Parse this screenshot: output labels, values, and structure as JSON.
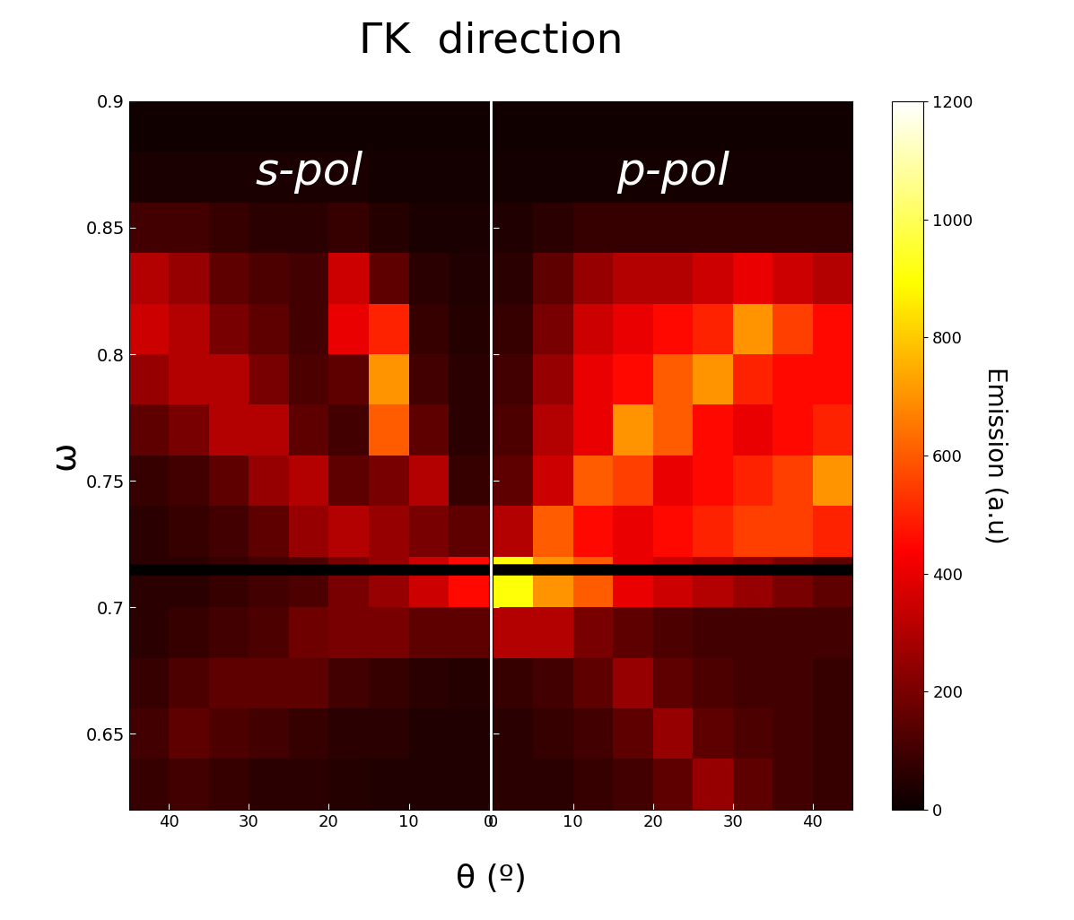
{
  "chart_data": {
    "type": "heatmap",
    "title": "ΓK  direction",
    "x_label": "θ (º)",
    "y_label": "ω",
    "ylim": [
      0.62,
      0.9
    ],
    "yticks": [
      0.65,
      0.7,
      0.75,
      0.8,
      0.85,
      0.9
    ],
    "hline": 0.715,
    "x_edges": [
      0,
      5,
      10,
      15,
      20,
      25,
      30,
      35,
      40,
      45
    ],
    "y_edges": [
      0.62,
      0.64,
      0.66,
      0.68,
      0.7,
      0.72,
      0.74,
      0.76,
      0.78,
      0.8,
      0.82,
      0.84,
      0.86,
      0.88,
      0.9
    ],
    "colorbar": {
      "label": "Emission (a.u)",
      "range": [
        0,
        1200
      ],
      "ticks": [
        0,
        200,
        400,
        600,
        800,
        1000,
        1200
      ]
    },
    "panels": [
      {
        "name": "s-pol",
        "xlim": [
          45,
          0
        ],
        "xticks": [
          40,
          30,
          20,
          10,
          0
        ],
        "cells": [
          [
            40,
            40,
            40,
            50,
            60,
            60,
            80,
            100,
            80
          ],
          [
            40,
            40,
            60,
            60,
            80,
            100,
            120,
            150,
            100
          ],
          [
            50,
            60,
            80,
            100,
            150,
            150,
            150,
            120,
            80
          ],
          [
            150,
            150,
            200,
            200,
            180,
            120,
            100,
            80,
            60
          ],
          [
            450,
            350,
            250,
            200,
            120,
            100,
            80,
            60,
            60
          ],
          [
            150,
            200,
            250,
            300,
            250,
            150,
            100,
            80,
            60
          ],
          [
            80,
            300,
            200,
            150,
            300,
            250,
            150,
            100,
            80
          ],
          [
            60,
            150,
            600,
            100,
            150,
            300,
            300,
            200,
            150
          ],
          [
            60,
            100,
            700,
            150,
            120,
            200,
            300,
            300,
            250
          ],
          [
            50,
            80,
            500,
            400,
            100,
            150,
            200,
            300,
            350
          ],
          [
            40,
            60,
            150,
            350,
            100,
            120,
            150,
            250,
            300
          ],
          [
            30,
            30,
            50,
            80,
            60,
            60,
            80,
            100,
            100
          ],
          [
            20,
            20,
            20,
            30,
            30,
            30,
            30,
            30,
            30
          ],
          [
            10,
            10,
            10,
            10,
            10,
            10,
            10,
            10,
            10
          ]
        ]
      },
      {
        "name": "p-pol",
        "xlim": [
          0,
          45
        ],
        "xticks": [
          0,
          10,
          20,
          30,
          40
        ],
        "cells": [
          [
            60,
            60,
            80,
            100,
            150,
            250,
            150,
            100,
            80
          ],
          [
            60,
            80,
            100,
            150,
            250,
            150,
            120,
            100,
            80
          ],
          [
            80,
            100,
            150,
            250,
            150,
            120,
            100,
            100,
            80
          ],
          [
            300,
            300,
            200,
            150,
            120,
            100,
            100,
            100,
            100
          ],
          [
            900,
            700,
            600,
            400,
            350,
            300,
            250,
            200,
            150
          ],
          [
            300,
            600,
            450,
            400,
            450,
            500,
            550,
            550,
            500
          ],
          [
            150,
            350,
            600,
            550,
            400,
            450,
            500,
            550,
            700
          ],
          [
            120,
            300,
            400,
            700,
            600,
            450,
            400,
            450,
            500
          ],
          [
            100,
            250,
            400,
            450,
            600,
            700,
            500,
            450,
            450
          ],
          [
            80,
            200,
            350,
            400,
            450,
            500,
            700,
            550,
            450
          ],
          [
            60,
            150,
            250,
            300,
            300,
            350,
            400,
            350,
            300
          ],
          [
            40,
            60,
            80,
            80,
            80,
            80,
            80,
            80,
            80
          ],
          [
            20,
            20,
            20,
            20,
            20,
            20,
            20,
            20,
            20
          ],
          [
            10,
            10,
            10,
            10,
            10,
            10,
            10,
            10,
            10
          ]
        ]
      }
    ]
  }
}
